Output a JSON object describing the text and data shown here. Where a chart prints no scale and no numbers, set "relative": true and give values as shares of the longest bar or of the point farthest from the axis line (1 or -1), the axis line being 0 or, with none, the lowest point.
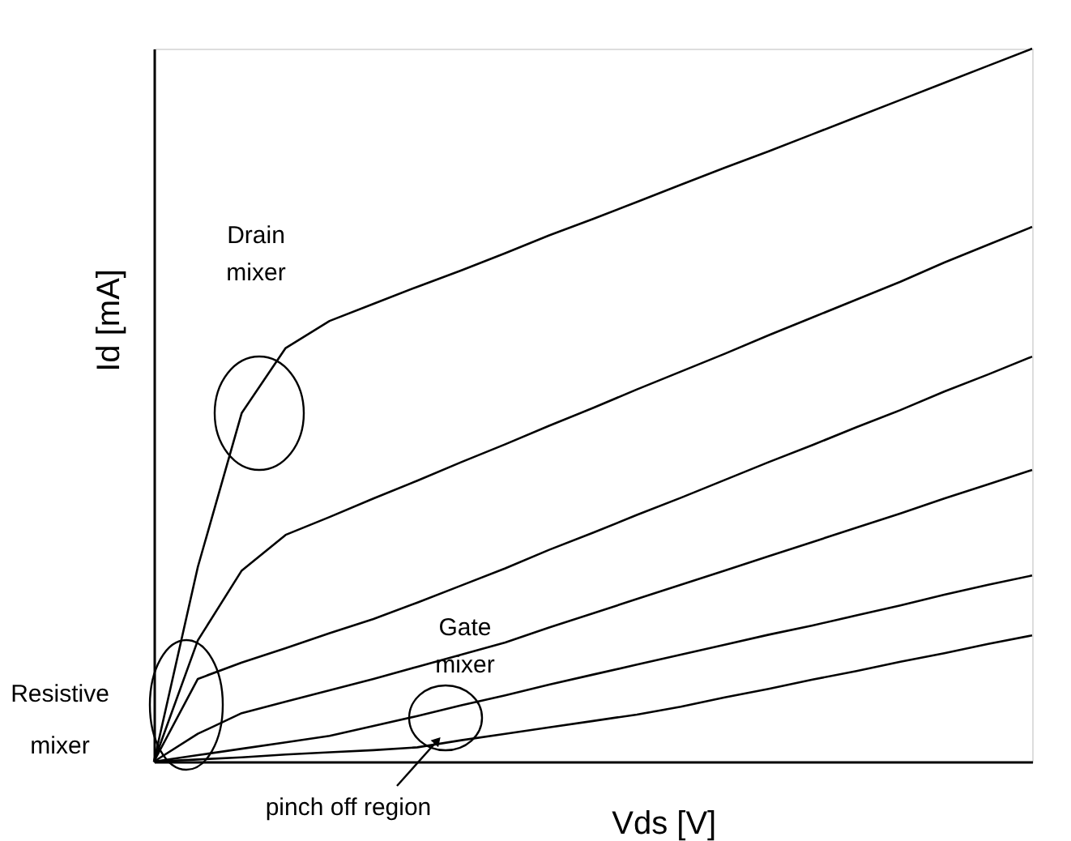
{
  "chart_data": {
    "type": "line",
    "relative": true,
    "xlabel": "Vds [V]",
    "ylabel": "Id [mA]",
    "tick_labels": false,
    "grid": false,
    "legend": false,
    "marker": "none",
    "line_style": "solid",
    "categories": [
      null,
      null,
      null,
      null,
      null,
      null,
      null,
      null,
      null,
      null,
      null,
      null,
      null,
      null,
      null,
      null,
      null,
      null,
      null,
      null,
      null
    ],
    "annotations": [
      "Drain mixer",
      "Gate mixer",
      "Resistive mixer",
      "pinch off region"
    ],
    "series": [
      {
        "color": "#000000",
        "values": [
          0,
          0.273,
          0.489,
          0.58,
          0.618,
          0.642,
          0.666,
          0.689,
          0.713,
          0.738,
          0.761,
          0.785,
          0.809,
          0.833,
          0.856,
          0.88,
          0.904,
          0.928,
          0.952,
          0.976,
          1
        ]
      },
      {
        "color": "#000000",
        "values": [
          0,
          0.17,
          0.268,
          0.318,
          0.343,
          0.369,
          0.394,
          0.42,
          0.445,
          0.471,
          0.496,
          0.522,
          0.547,
          0.572,
          0.598,
          0.623,
          0.648,
          0.673,
          0.7,
          0.725,
          0.75
        ]
      },
      {
        "color": "#000000",
        "values": [
          0,
          0.116,
          0.139,
          0.159,
          0.18,
          0.2,
          0.223,
          0.247,
          0.271,
          0.297,
          0.321,
          0.346,
          0.37,
          0.395,
          0.42,
          0.444,
          0.469,
          0.493,
          0.519,
          0.543,
          0.568
        ]
      },
      {
        "color": "#000000",
        "values": [
          0,
          0.039,
          0.068,
          0.084,
          0.1,
          0.116,
          0.133,
          0.15,
          0.167,
          0.188,
          0.208,
          0.228,
          0.248,
          0.268,
          0.288,
          0.308,
          0.328,
          0.348,
          0.369,
          0.389,
          0.409
        ]
      },
      {
        "color": "#000000",
        "values": [
          0,
          0.009,
          0.018,
          0.027,
          0.036,
          0.05,
          0.064,
          0.079,
          0.093,
          0.108,
          0.122,
          0.136,
          0.15,
          0.164,
          0.178,
          0.191,
          0.205,
          0.219,
          0.234,
          0.248,
          0.261
        ]
      },
      {
        "color": "#000000",
        "values": [
          0,
          0.003,
          0.006,
          0.01,
          0.013,
          0.016,
          0.02,
          0.03,
          0.039,
          0.048,
          0.057,
          0.066,
          0.077,
          0.09,
          0.102,
          0.115,
          0.127,
          0.14,
          0.152,
          0.165,
          0.177
        ]
      }
    ]
  }
}
